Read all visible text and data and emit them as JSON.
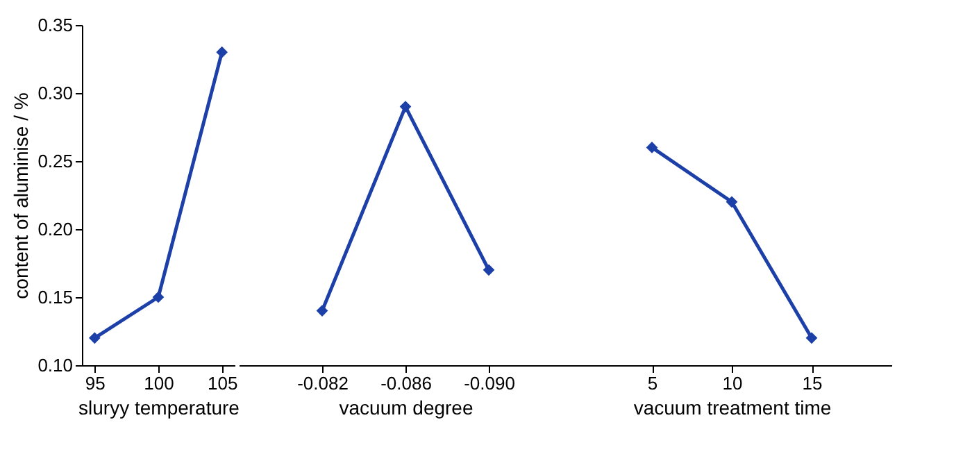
{
  "chart_data": [
    {
      "type": "line",
      "categories": [
        "95",
        "100",
        "105"
      ],
      "xlabel": "sluryy temperature",
      "ylabel": "content of aluminise / %",
      "ylim": [
        0.1,
        0.35
      ],
      "yticks": [
        {
          "value": 0.1,
          "label": "0.10"
        },
        {
          "value": 0.15,
          "label": "0.15"
        },
        {
          "value": 0.2,
          "label": "0.20"
        },
        {
          "value": 0.25,
          "label": "0.25"
        },
        {
          "value": 0.3,
          "label": "0.30"
        },
        {
          "value": 0.35,
          "label": "0.35"
        }
      ],
      "marker": "diamond",
      "line_style": "solid",
      "grid": false,
      "series": [
        {
          "color": "#1c3fa8",
          "values": [
            0.12,
            0.15,
            0.33
          ]
        }
      ]
    },
    {
      "type": "line",
      "categories": [
        "-0.082",
        "-0.086",
        "-0.090"
      ],
      "xlabel": "vacuum degree",
      "ylim": [
        0.1,
        0.35
      ],
      "tick_labels": "x",
      "marker": "diamond",
      "line_style": "solid",
      "grid": false,
      "series": [
        {
          "color": "#1c3fa8",
          "values": [
            0.14,
            0.29,
            0.17
          ]
        }
      ]
    },
    {
      "type": "line",
      "categories": [
        "5",
        "10",
        "15"
      ],
      "xlabel": "vacuum treatment time",
      "ylim": [
        0.1,
        0.35
      ],
      "tick_labels": "x",
      "marker": "diamond",
      "line_style": "solid",
      "grid": false,
      "series": [
        {
          "color": "#1c3fa8",
          "values": [
            0.26,
            0.22,
            0.12
          ]
        }
      ]
    }
  ]
}
